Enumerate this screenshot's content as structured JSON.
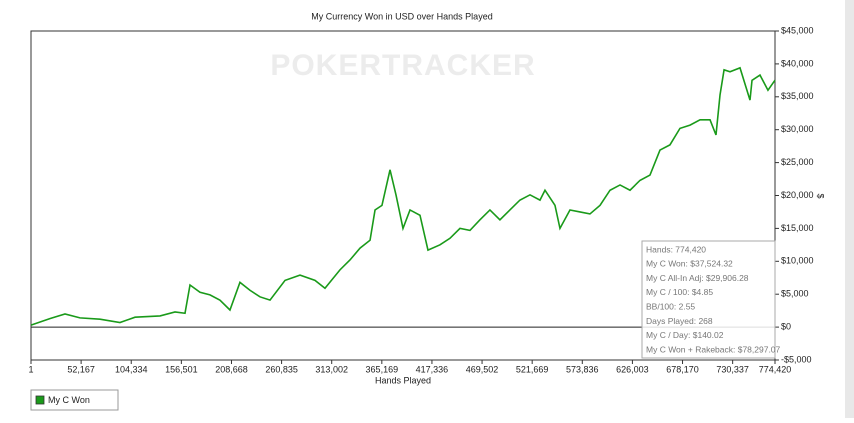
{
  "chart_data": {
    "type": "line",
    "title": "My Currency Won in USD over Hands Played",
    "watermark": "POKERTRACKER",
    "x_label": "Hands Played",
    "y_label": "$",
    "x": [
      1,
      20000,
      35400,
      51000,
      71800,
      92600,
      108300,
      134300,
      149900,
      160300,
      165500,
      175900,
      186300,
      196700,
      207100,
      217500,
      227900,
      238300,
      248800,
      264400,
      280000,
      295600,
      306000,
      321600,
      332000,
      342500,
      352900,
      358100,
      365300,
      373700,
      379900,
      387200,
      394500,
      404900,
      413200,
      425700,
      436100,
      446500,
      456900,
      467300,
      477700,
      488100,
      498500,
      508900,
      519400,
      529800,
      535000,
      545400,
      550600,
      561000,
      571400,
      581800,
      592300,
      602700,
      613100,
      623500,
      633900,
      644300,
      654700,
      665100,
      675500,
      686000,
      696400,
      706800,
      713000,
      717200,
      721400,
      727600,
      738000,
      748400,
      750500,
      758800,
      767100,
      774420
    ],
    "series": [
      {
        "name": "My C Won",
        "color": "#1a9a1a",
        "values": [
          300,
          1300,
          2000,
          1400,
          1200,
          700,
          1500,
          1700,
          2300,
          2100,
          6400,
          5300,
          4900,
          4100,
          2600,
          6800,
          5600,
          4600,
          4100,
          7100,
          7900,
          7100,
          5900,
          8700,
          10200,
          12000,
          13200,
          17800,
          18500,
          23900,
          20100,
          15000,
          17800,
          17000,
          11700,
          12500,
          13500,
          15000,
          14700,
          16300,
          17800,
          16300,
          17800,
          19300,
          20100,
          19300,
          20800,
          18500,
          15000,
          17800,
          17500,
          17200,
          18500,
          20800,
          21600,
          20800,
          22300,
          23100,
          26900,
          27700,
          30200,
          30700,
          31500,
          31500,
          29200,
          35300,
          39100,
          38800,
          39400,
          34500,
          37500,
          38300,
          36000,
          37524.32
        ]
      }
    ],
    "xlim": [
      1,
      774420
    ],
    "xticks": [
      1,
      {
        "value": 52167,
        "label": "52,167"
      },
      {
        "value": 104334,
        "label": "104,334"
      },
      {
        "value": 156501,
        "label": "156,501"
      },
      {
        "value": 208668,
        "label": "208,668"
      },
      {
        "value": 260835,
        "label": "260,835"
      },
      {
        "value": 313002,
        "label": "313,002"
      },
      {
        "value": 365169,
        "label": "365,169"
      },
      {
        "value": 417336,
        "label": "417,336"
      },
      {
        "value": 469502,
        "label": "469,502"
      },
      {
        "value": 521669,
        "label": "521,669"
      },
      {
        "value": 573836,
        "label": "573,836"
      },
      {
        "value": 626003,
        "label": "626,003"
      },
      {
        "value": 678170,
        "label": "678,170"
      },
      {
        "value": 730337,
        "label": "730,337"
      },
      {
        "value": 774420,
        "label": "774,420"
      }
    ],
    "ylim": [
      -5000,
      45000
    ],
    "yticks": [
      {
        "value": -5000,
        "label": "-$5,000"
      },
      {
        "value": 0,
        "label": "$0"
      },
      {
        "value": 5000,
        "label": "$5,000"
      },
      {
        "value": 10000,
        "label": "$10,000"
      },
      {
        "value": 15000,
        "label": "$15,000"
      },
      {
        "value": 20000,
        "label": "$20,000"
      },
      {
        "value": 25000,
        "label": "$25,000"
      },
      {
        "value": 30000,
        "label": "$30,000"
      },
      {
        "value": 35000,
        "label": "$35,000"
      },
      {
        "value": 40000,
        "label": "$40,000"
      },
      {
        "value": 45000,
        "label": "$45,000"
      }
    ],
    "grid": false,
    "zero_line": true,
    "legend": "bottom-left",
    "stats_box": [
      "Hands: 774,420",
      "My C Won: $37,524.32",
      "My C All-In Adj: $29,906.28",
      "My C / 100: $4.85",
      "BB/100: 2.55",
      "Days Played: 268",
      "My C / Day: $140.02",
      "My C Won + Rakeback: $78,297.07"
    ]
  }
}
